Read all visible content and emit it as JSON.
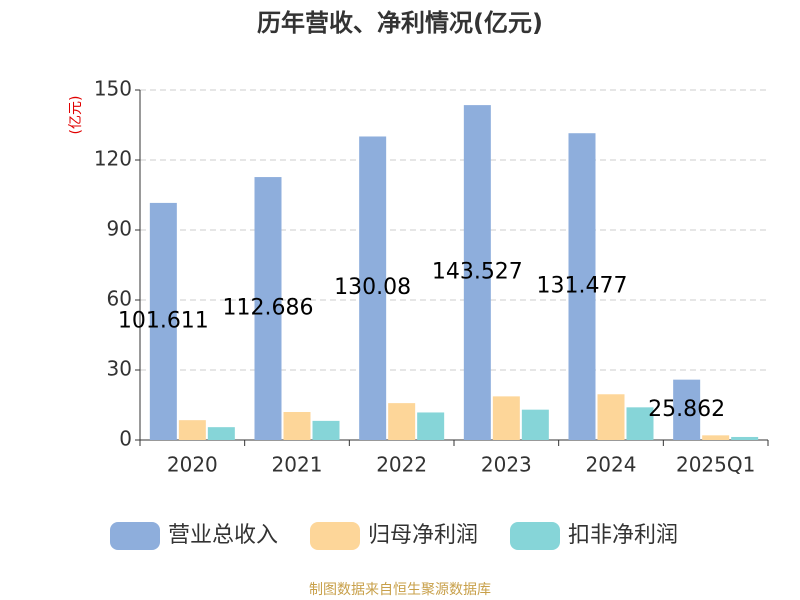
{
  "chart_data": {
    "type": "bar",
    "title": "历年营收、净利情况(亿元)",
    "y_unit": "(亿元)",
    "categories": [
      "2020",
      "2021",
      "2022",
      "2023",
      "2024",
      "2025Q1"
    ],
    "series": [
      {
        "name": "营业总收入",
        "color": "#8eaedc",
        "values": [
          101.611,
          112.686,
          130.08,
          143.527,
          131.477,
          25.862
        ],
        "data_labels": true
      },
      {
        "name": "归母净利润",
        "color": "#fdd699",
        "values": [
          8.5,
          12.0,
          15.8,
          18.7,
          19.6,
          2.0
        ]
      },
      {
        "name": "扣非净利润",
        "color": "#86d5d8",
        "values": [
          5.5,
          8.2,
          11.8,
          13.0,
          14.0,
          1.3
        ]
      }
    ],
    "ylim": [
      0,
      150
    ],
    "yticks": [
      0,
      30,
      60,
      90,
      120,
      150
    ],
    "grid": true,
    "source": "制图数据来自恒生聚源数据库"
  }
}
